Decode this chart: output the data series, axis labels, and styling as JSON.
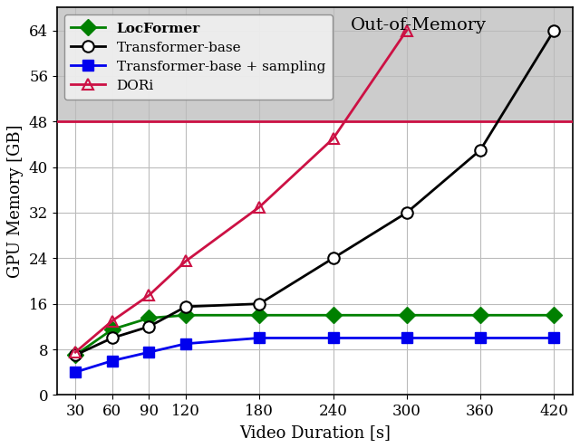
{
  "x": [
    30,
    60,
    90,
    120,
    180,
    240,
    300,
    360,
    420
  ],
  "locformer": [
    7.0,
    11.5,
    13.5,
    14.0,
    14.0,
    14.0,
    14.0,
    14.0,
    14.0
  ],
  "transformer_base": [
    7.0,
    10.0,
    12.0,
    15.5,
    16.0,
    24.0,
    32.0,
    43.0,
    64.0
  ],
  "transformer_sampling": [
    4.0,
    6.0,
    7.5,
    9.0,
    10.0,
    10.0,
    10.0,
    10.0,
    10.0
  ],
  "dori": [
    7.5,
    13.0,
    17.5,
    23.5,
    33.0,
    45.0,
    64.0
  ],
  "dori_x": [
    30,
    60,
    90,
    120,
    180,
    240,
    300
  ],
  "memory_limit": 48,
  "oom_region_color": "#cccccc",
  "locformer_color": "#008000",
  "transformer_base_color": "#000000",
  "transformer_sampling_color": "#0000EE",
  "dori_color": "#CC1144",
  "limit_line_color": "#CC1144",
  "xlabel": "Video Duration [s]",
  "ylabel": "GPU Memory [GB]",
  "oom_label": "Out-of-Memory",
  "legend_locformer": "LocFormer",
  "legend_transformer_base": "Transformer-base",
  "legend_transformer_sampling": "Transformer-base + sampling",
  "legend_dori": "DORi",
  "xlim": [
    15,
    435
  ],
  "ylim": [
    0,
    68
  ],
  "yticks": [
    0,
    8,
    16,
    24,
    32,
    40,
    48,
    56,
    64
  ],
  "xticks": [
    30,
    60,
    90,
    120,
    180,
    240,
    300,
    360,
    420
  ],
  "figsize": [
    6.4,
    4.95
  ],
  "dpi": 100
}
